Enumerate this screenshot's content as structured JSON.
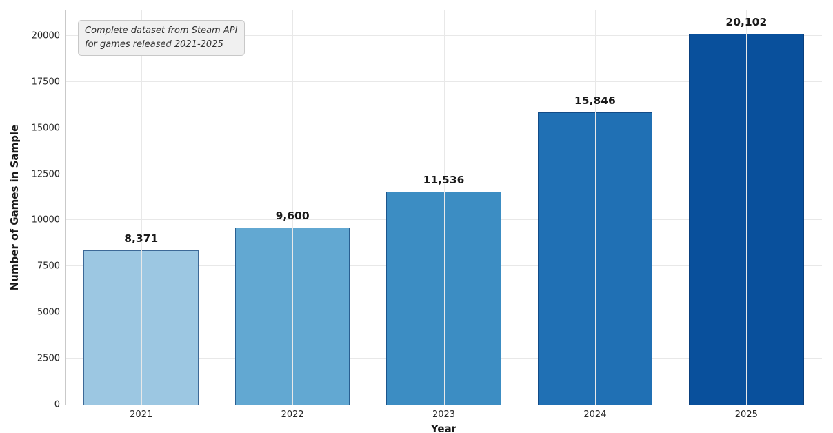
{
  "chart_data": {
    "type": "bar",
    "title": "",
    "xlabel": "Year",
    "ylabel": "Number of Games in Sample",
    "categories": [
      "2021",
      "2022",
      "2023",
      "2024",
      "2025"
    ],
    "values": [
      8371,
      9600,
      11536,
      15846,
      20102
    ],
    "value_labels": [
      "8,371",
      "9,600",
      "11,536",
      "15,846",
      "20,102"
    ],
    "bar_colors": [
      "#9cc7e2",
      "#62a8d2",
      "#3c8dc3",
      "#2070b4",
      "#09509c"
    ],
    "ylim": [
      0,
      21380
    ],
    "yticks": [
      0,
      2500,
      5000,
      7500,
      10000,
      12500,
      15000,
      17500,
      20000
    ],
    "grid": "both",
    "legend": "none",
    "annotation_lines": [
      "Complete dataset from Steam API",
      "for games released 2021-2025"
    ]
  }
}
